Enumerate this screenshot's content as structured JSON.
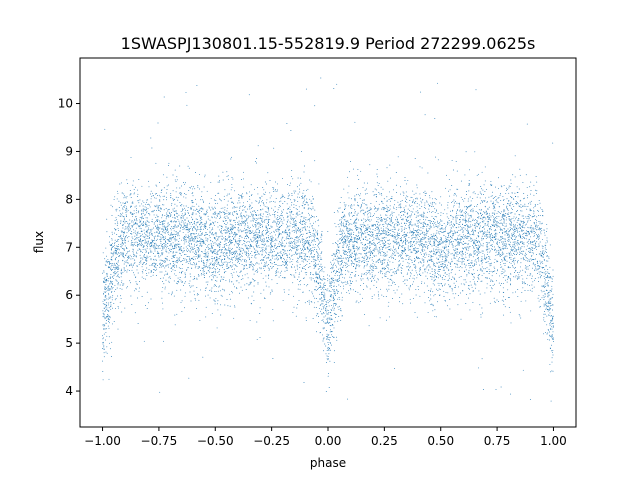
{
  "chart_data": {
    "type": "scatter",
    "title": "1SWASPJ130801.15-552819.9 Period 272299.0625s",
    "xlabel": "phase",
    "ylabel": "flux",
    "xlim": [
      -1.1,
      1.1
    ],
    "ylim": [
      3.25,
      10.95
    ],
    "xticks": [
      "−1.00",
      "−0.75",
      "−0.50",
      "−0.25",
      "0.00",
      "0.25",
      "0.50",
      "0.75",
      "1.00"
    ],
    "xtick_values": [
      -1.0,
      -0.75,
      -0.5,
      -0.25,
      0.0,
      0.25,
      0.5,
      0.75,
      1.0
    ],
    "yticks": [
      "4",
      "5",
      "6",
      "7",
      "8",
      "9",
      "10"
    ],
    "ytick_values": [
      4,
      5,
      6,
      7,
      8,
      9,
      10
    ],
    "grid": false,
    "series": [
      {
        "color": "#1f77b4",
        "n_points": 9000,
        "x_range": [
          -1.0,
          1.0
        ],
        "baseline_flux": 7.2,
        "scatter_sigma": 0.55,
        "primary_eclipse_phases": [
          -1.0,
          0.0,
          1.0
        ],
        "primary_eclipse_min_flux": 5.3,
        "primary_eclipse_half_width": 0.1,
        "outlier_range": [
          3.7,
          10.6
        ]
      }
    ]
  }
}
